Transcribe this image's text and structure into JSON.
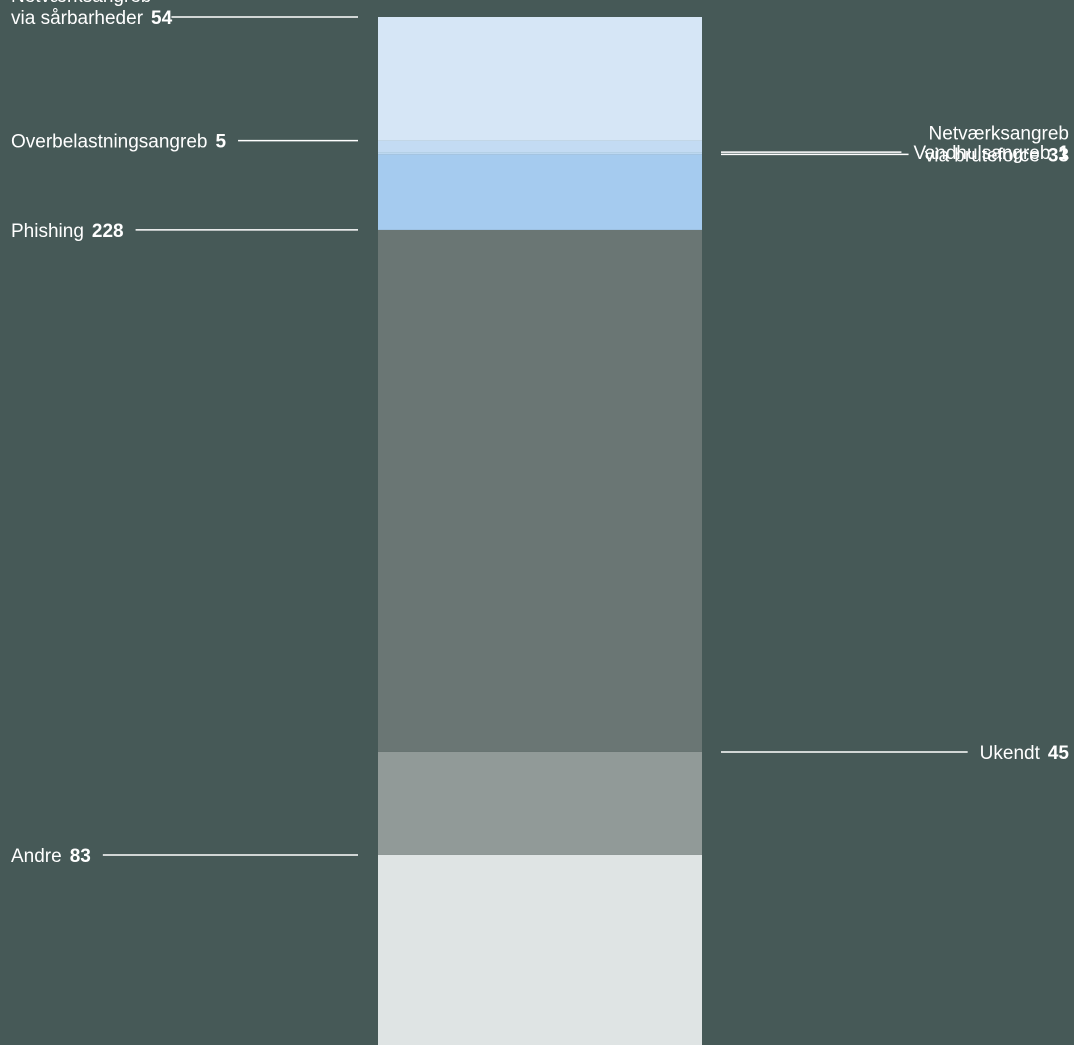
{
  "chart_data": {
    "type": "bar",
    "stacked": true,
    "orientation": "vertical",
    "segments": [
      {
        "name": "Andre",
        "value": 83,
        "color": "#dfe4e4",
        "label_side": "left"
      },
      {
        "name": "Ukendt",
        "value": 45,
        "color": "#919a98",
        "label_side": "right"
      },
      {
        "name": "Phishing",
        "value": 228,
        "color": "#6a7674",
        "label_side": "left"
      },
      {
        "name": "Netværksangreb via bruteforce",
        "label_lines": [
          "Netværksangreb",
          "via bruteforce"
        ],
        "value": 33,
        "color": "#a5cbef",
        "label_side": "right"
      },
      {
        "name": "Vandhulsangreb",
        "value": 1,
        "color": "#bcd8f1",
        "label_side": "right"
      },
      {
        "name": "Overbelastningsangreb",
        "value": 5,
        "color": "#c3dbf3",
        "label_side": "left"
      },
      {
        "name": "Netværksangreb via sårbarheder",
        "label_lines": [
          "Netværksangreb",
          "via sårbarheder"
        ],
        "value": 54,
        "color": "#d6e6f6",
        "label_side": "left"
      }
    ],
    "background_color": "#465957",
    "leader_line_color": "#ffffff",
    "label_color": "#ffffff",
    "grid": false,
    "legend": "none"
  }
}
